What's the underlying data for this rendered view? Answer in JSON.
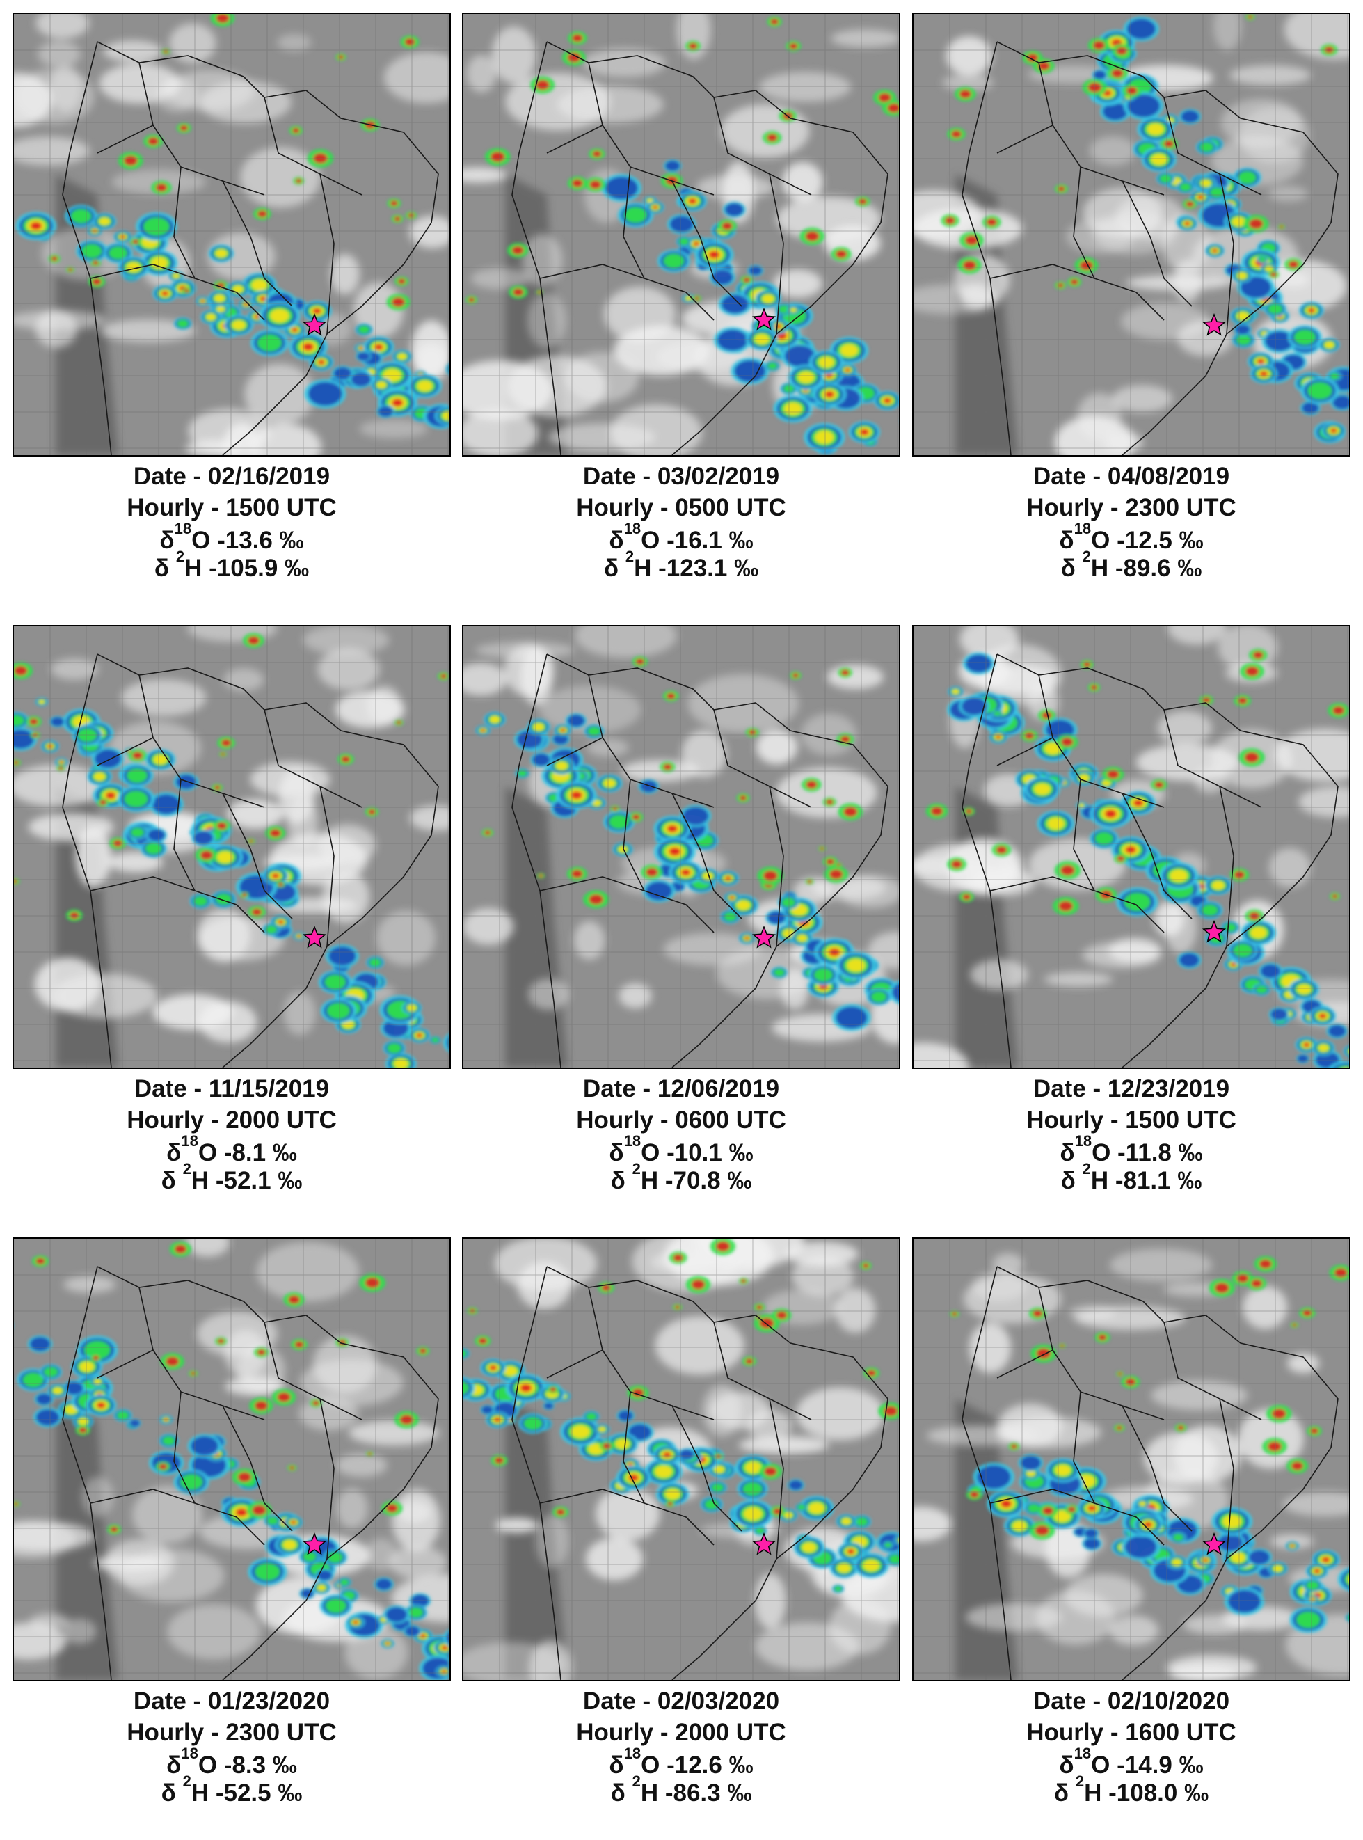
{
  "panels": [
    {
      "date_line": "Date - 02/16/2019",
      "hourly_line": "Hourly - 1500 UTC",
      "d18o_prefix": "δ",
      "d18o_sup": "18",
      "d18o_text": "O -13.6 ‰",
      "d2h_prefix": "δ ",
      "d2h_sup": "2",
      "d2h_text": "H -105.9 ‰"
    },
    {
      "date_line": "Date - 03/02/2019",
      "hourly_line": "Hourly - 0500 UTC",
      "d18o_prefix": "δ",
      "d18o_sup": "18",
      "d18o_text": "O -16.1 ‰",
      "d2h_prefix": "δ ",
      "d2h_sup": "2",
      "d2h_text": "H -123.1 ‰"
    },
    {
      "date_line": "Date - 04/08/2019",
      "hourly_line": "Hourly - 2300 UTC",
      "d18o_prefix": "δ",
      "d18o_sup": "18",
      "d18o_text": "O -12.5 ‰",
      "d2h_prefix": "δ ",
      "d2h_sup": "2",
      "d2h_text": "H -89.6 ‰"
    },
    {
      "date_line": "Date - 11/15/2019",
      "hourly_line": "Hourly - 2000 UTC",
      "d18o_prefix": "δ",
      "d18o_sup": "18",
      "d18o_text": "O -8.1 ‰",
      "d2h_prefix": "δ ",
      "d2h_sup": "2",
      "d2h_text": "H -52.1 ‰"
    },
    {
      "date_line": "Date - 12/06/2019",
      "hourly_line": "Hourly - 0600 UTC",
      "d18o_prefix": "δ",
      "d18o_sup": "18",
      "d18o_text": "O -10.1 ‰",
      "d2h_prefix": "δ ",
      "d2h_sup": "2",
      "d2h_text": "H -70.8 ‰"
    },
    {
      "date_line": "Date - 12/23/2019",
      "hourly_line": "Hourly - 1500 UTC",
      "d18o_prefix": "δ",
      "d18o_sup": "18",
      "d18o_text": "O -11.8 ‰",
      "d2h_prefix": "δ ",
      "d2h_sup": "2",
      "d2h_text": "H -81.1 ‰"
    },
    {
      "date_line": "Date - 01/23/2020",
      "hourly_line": "Hourly - 2300 UTC",
      "d18o_prefix": "δ",
      "d18o_sup": "18",
      "d18o_text": "O -8.3 ‰",
      "d2h_prefix": "δ ",
      "d2h_sup": "2",
      "d2h_text": "H -52.5 ‰"
    },
    {
      "date_line": "Date - 02/03/2020",
      "hourly_line": "Hourly - 2000 UTC",
      "d18o_prefix": "δ",
      "d18o_sup": "18",
      "d18o_text": "O -12.6 ‰",
      "d2h_prefix": "δ ",
      "d2h_sup": "2",
      "d2h_text": "H -86.3 ‰"
    },
    {
      "date_line": "Date - 02/10/2020",
      "hourly_line": "Hourly - 1600 UTC",
      "d18o_prefix": "δ",
      "d18o_sup": "18",
      "d18o_text": "O -14.9 ‰",
      "d2h_prefix": "δ ",
      "d2h_sup": "2",
      "d2h_text": "H -108.0 ‰"
    }
  ],
  "colors": {
    "background_gray": "#8f8f8f",
    "cloud_white": "#f2f2f2",
    "cold_cloud_cyan": "#39c8e6",
    "cloud_blue": "#1f4fb5",
    "cloud_green": "#2ee04a",
    "cloud_yellow": "#f2e21a",
    "cloud_red": "#e02020",
    "cloud_dark_red": "#6a1010",
    "station_star_magenta": "#ff1fa8",
    "border_lines": "#1a1a1a"
  },
  "icons": {
    "station_marker": "star-icon"
  }
}
